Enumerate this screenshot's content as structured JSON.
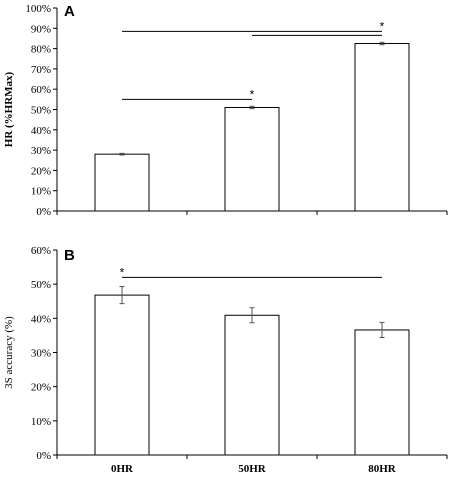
{
  "chart_data": [
    {
      "panel": "A",
      "type": "bar",
      "ylabel": "HR (%HRMax)",
      "ylim": [
        0,
        100
      ],
      "ytick_labels": [
        "0%",
        "10%",
        "20%",
        "30%",
        "40%",
        "50%",
        "60%",
        "70%",
        "80%",
        "90%",
        "100%"
      ],
      "categories": [
        "0HR",
        "50HR",
        "80HR"
      ],
      "values": [
        28,
        51,
        82.5
      ],
      "errors": [
        0.4,
        0.6,
        0.6
      ],
      "significance": [
        {
          "from": "0HR",
          "to": "50HR",
          "level": 55,
          "label": "*"
        },
        {
          "from": "50HR",
          "to": "80HR",
          "level": 86.5,
          "label": ""
        },
        {
          "from": "0HR",
          "to": "80HR",
          "level": 88.5,
          "label": "*"
        }
      ],
      "show_category_labels": false
    },
    {
      "panel": "B",
      "type": "bar",
      "ylabel": "3S accuracy (%)",
      "ylim": [
        0,
        60
      ],
      "ytick_labels": [
        "0%",
        "10%",
        "20%",
        "30%",
        "40%",
        "50%",
        "60%"
      ],
      "categories": [
        "0HR",
        "50HR",
        "80HR"
      ],
      "values": [
        46.8,
        40.9,
        36.6
      ],
      "errors": [
        2.5,
        2.2,
        2.2
      ],
      "significance": [
        {
          "from": "0HR",
          "to": "80HR",
          "level": 52,
          "label": "*"
        }
      ],
      "show_category_labels": true
    }
  ]
}
